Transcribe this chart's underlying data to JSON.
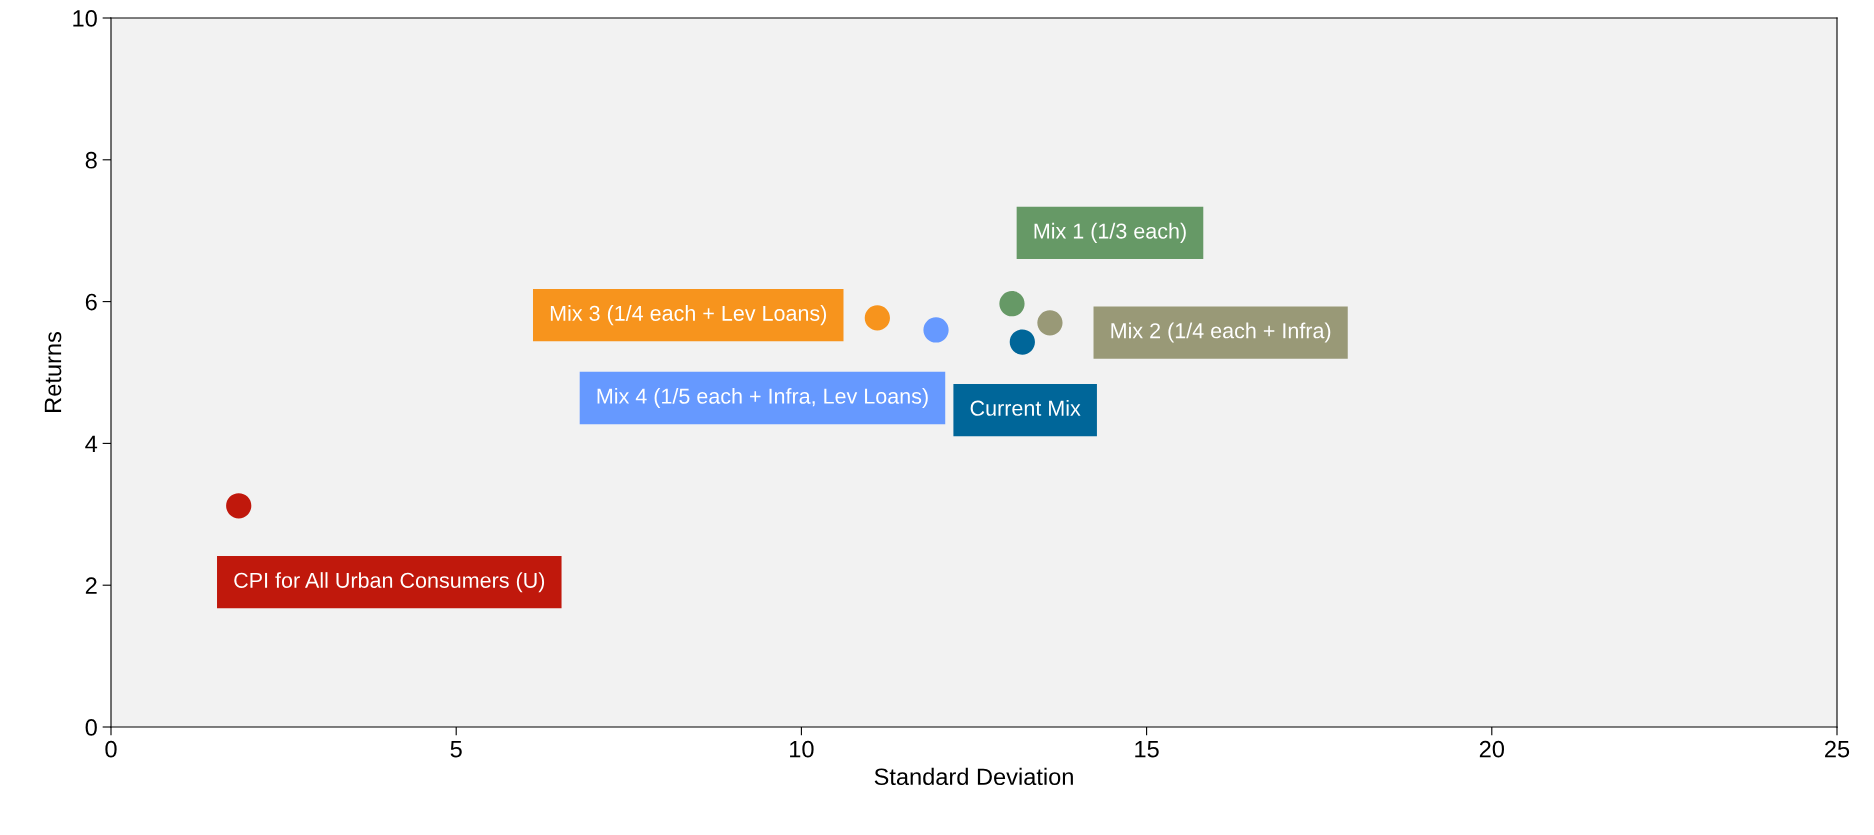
{
  "chart_data": {
    "type": "scatter",
    "xlabel": "Standard Deviation",
    "ylabel": "Returns",
    "xlim": [
      0,
      25
    ],
    "ylim": [
      0,
      10
    ],
    "xticks": [
      0,
      5,
      10,
      15,
      20,
      25
    ],
    "yticks": [
      0,
      2,
      4,
      6,
      8,
      10
    ],
    "grid": false,
    "legend": false,
    "marker": "circle",
    "series": [
      {
        "name": "CPI for All Urban Consumers (U)",
        "color": "#c0180c",
        "x": [
          1.85
        ],
        "values": [
          3.12
        ]
      },
      {
        "name": "Mix 3 (1/4 each + Lev Loans)",
        "color": "#f7941d",
        "x": [
          11.1
        ],
        "values": [
          5.77
        ]
      },
      {
        "name": "Mix 4 (1/5 each + Infra, Lev Loans)",
        "color": "#6699ff",
        "x": [
          11.95
        ],
        "values": [
          5.6
        ]
      },
      {
        "name": "Mix 1 (1/3 each)",
        "color": "#669966",
        "x": [
          13.05
        ],
        "values": [
          5.97
        ]
      },
      {
        "name": "Mix 2 (1/4 each + Infra)",
        "color": "#999977",
        "x": [
          13.6
        ],
        "values": [
          5.7
        ]
      },
      {
        "name": "Current Mix",
        "color": "#006699",
        "x": [
          13.2
        ],
        "values": [
          5.43
        ]
      }
    ]
  }
}
